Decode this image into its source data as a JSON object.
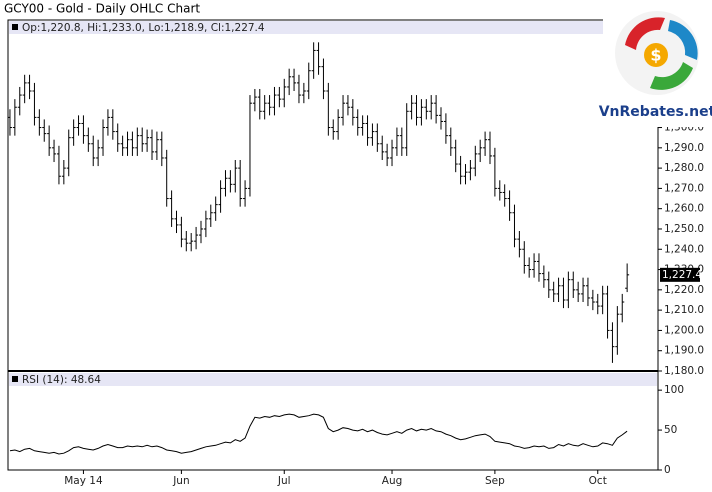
{
  "chart_data": [
    {
      "type": "ohlc",
      "title": "GCY00 - Gold - Daily OHLC Chart",
      "legend": "Op:1,220.8, Hi:1,233.0, Lo:1,218.9, Cl:1,227.4",
      "last_label": "1,227.4",
      "color": "#000000",
      "xlim": [
        -0.4,
        132.3
      ],
      "ylim": [
        1180,
        1353
      ],
      "yticks": [
        {
          "value": 1180,
          "label": "1,180.0"
        },
        {
          "value": 1190,
          "label": "1,190.0"
        },
        {
          "value": 1200,
          "label": "1,200.0"
        },
        {
          "value": 1210,
          "label": "1,210.0"
        },
        {
          "value": 1220,
          "label": "1,220.0"
        },
        {
          "value": 1230,
          "label": "1,230.0"
        },
        {
          "value": 1240,
          "label": "1,240.0"
        },
        {
          "value": 1250,
          "label": "1,250.0"
        },
        {
          "value": 1260,
          "label": "1,260.0"
        },
        {
          "value": 1270,
          "label": "1,270.0"
        },
        {
          "value": 1280,
          "label": "1,280.0"
        },
        {
          "value": 1290,
          "label": "1,290.0"
        },
        {
          "value": 1300,
          "label": "1,300.0"
        }
      ],
      "open": [
        1305,
        1300,
        1310,
        1316,
        1322,
        1318,
        1305,
        1300,
        1297,
        1290,
        1287,
        1276,
        1280,
        1295,
        1300,
        1302,
        1296,
        1292,
        1285,
        1290,
        1300,
        1305,
        1298,
        1292,
        1290,
        1294,
        1290,
        1296,
        1292,
        1295,
        1288,
        1294,
        1285,
        1265,
        1255,
        1252,
        1245,
        1243,
        1244,
        1247,
        1250,
        1255,
        1258,
        1262,
        1270,
        1275,
        1272,
        1280,
        1265,
        1270,
        1312,
        1315,
        1308,
        1312,
        1310,
        1316,
        1314,
        1320,
        1325,
        1322,
        1316,
        1318,
        1328,
        1338,
        1330,
        1318,
        1300,
        1298,
        1305,
        1312,
        1310,
        1305,
        1300,
        1302,
        1295,
        1298,
        1292,
        1288,
        1285,
        1290,
        1296,
        1290,
        1308,
        1312,
        1305,
        1310,
        1308,
        1312,
        1306,
        1303,
        1296,
        1290,
        1282,
        1276,
        1278,
        1280,
        1287,
        1290,
        1294,
        1286,
        1270,
        1268,
        1265,
        1258,
        1245,
        1240,
        1232,
        1230,
        1234,
        1228,
        1225,
        1220,
        1218,
        1222,
        1215,
        1225,
        1220,
        1218,
        1222,
        1216,
        1214,
        1212,
        1218,
        1200,
        1192,
        1208,
        1220.8
      ],
      "high": [
        1309,
        1314,
        1320,
        1326,
        1326,
        1322,
        1309,
        1304,
        1301,
        1294,
        1291,
        1284,
        1299,
        1304,
        1306,
        1306,
        1300,
        1296,
        1294,
        1304,
        1309,
        1309,
        1302,
        1296,
        1298,
        1298,
        1300,
        1300,
        1299,
        1299,
        1298,
        1298,
        1289,
        1269,
        1259,
        1256,
        1249,
        1248,
        1251,
        1254,
        1259,
        1262,
        1266,
        1274,
        1279,
        1279,
        1284,
        1284,
        1274,
        1316,
        1319,
        1319,
        1316,
        1316,
        1320,
        1320,
        1324,
        1329,
        1329,
        1326,
        1322,
        1332,
        1342,
        1342,
        1334,
        1322,
        1304,
        1309,
        1316,
        1316,
        1314,
        1309,
        1306,
        1306,
        1302,
        1302,
        1296,
        1292,
        1294,
        1300,
        1300,
        1312,
        1316,
        1316,
        1314,
        1314,
        1316,
        1316,
        1310,
        1307,
        1300,
        1294,
        1286,
        1282,
        1284,
        1291,
        1294,
        1298,
        1298,
        1290,
        1274,
        1272,
        1269,
        1262,
        1249,
        1244,
        1236,
        1238,
        1238,
        1232,
        1229,
        1224,
        1226,
        1226,
        1229,
        1229,
        1224,
        1226,
        1226,
        1220,
        1218,
        1222,
        1222,
        1204,
        1212,
        1218,
        1233
      ],
      "low": [
        1296,
        1296,
        1306,
        1312,
        1314,
        1301,
        1296,
        1293,
        1286,
        1283,
        1272,
        1272,
        1276,
        1291,
        1296,
        1292,
        1288,
        1281,
        1281,
        1286,
        1296,
        1294,
        1288,
        1286,
        1286,
        1286,
        1286,
        1288,
        1288,
        1284,
        1284,
        1281,
        1261,
        1251,
        1248,
        1241,
        1239,
        1239,
        1240,
        1243,
        1246,
        1251,
        1254,
        1258,
        1266,
        1268,
        1268,
        1261,
        1261,
        1266,
        1308,
        1304,
        1304,
        1306,
        1306,
        1310,
        1310,
        1316,
        1318,
        1312,
        1312,
        1314,
        1324,
        1326,
        1314,
        1296,
        1294,
        1294,
        1301,
        1306,
        1301,
        1296,
        1296,
        1291,
        1291,
        1288,
        1284,
        1281,
        1281,
        1286,
        1286,
        1286,
        1304,
        1301,
        1301,
        1304,
        1304,
        1302,
        1299,
        1292,
        1286,
        1278,
        1272,
        1272,
        1274,
        1276,
        1283,
        1286,
        1282,
        1266,
        1264,
        1261,
        1254,
        1241,
        1236,
        1228,
        1226,
        1226,
        1224,
        1221,
        1216,
        1214,
        1214,
        1211,
        1211,
        1216,
        1214,
        1214,
        1212,
        1210,
        1208,
        1208,
        1196,
        1184,
        1188,
        1204,
        1218.9
      ],
      "close": [
        1300,
        1310,
        1316,
        1322,
        1318,
        1305,
        1300,
        1297,
        1290,
        1287,
        1276,
        1280,
        1295,
        1300,
        1302,
        1296,
        1292,
        1285,
        1290,
        1300,
        1305,
        1298,
        1292,
        1290,
        1294,
        1290,
        1296,
        1292,
        1295,
        1288,
        1294,
        1285,
        1265,
        1255,
        1252,
        1245,
        1243,
        1244,
        1247,
        1250,
        1255,
        1258,
        1262,
        1270,
        1275,
        1272,
        1280,
        1265,
        1270,
        1312,
        1315,
        1308,
        1312,
        1310,
        1316,
        1314,
        1320,
        1325,
        1322,
        1316,
        1318,
        1328,
        1338,
        1330,
        1318,
        1300,
        1298,
        1305,
        1312,
        1310,
        1305,
        1300,
        1302,
        1295,
        1298,
        1292,
        1288,
        1285,
        1290,
        1296,
        1290,
        1308,
        1312,
        1305,
        1310,
        1308,
        1312,
        1306,
        1303,
        1296,
        1290,
        1282,
        1276,
        1278,
        1280,
        1287,
        1290,
        1294,
        1286,
        1270,
        1268,
        1265,
        1258,
        1245,
        1240,
        1232,
        1230,
        1234,
        1228,
        1225,
        1220,
        1218,
        1222,
        1215,
        1225,
        1220,
        1218,
        1222,
        1216,
        1214,
        1212,
        1218,
        1200,
        1192,
        1208,
        1214,
        1227.4
      ]
    },
    {
      "type": "line",
      "label": "RSI (14): 48.64",
      "color": "#000000",
      "xlim": [
        -0.4,
        132.3
      ],
      "ylim": [
        0,
        124
      ],
      "yticks": [
        0,
        50,
        100
      ],
      "xticks": [
        {
          "value": 15,
          "label": "May 14"
        },
        {
          "value": 35,
          "label": "Jun"
        },
        {
          "value": 56,
          "label": "Jul"
        },
        {
          "value": 78,
          "label": "Aug"
        },
        {
          "value": 99,
          "label": "Sep"
        },
        {
          "value": 120,
          "label": "Oct"
        }
      ],
      "values": [
        24,
        25,
        23,
        26,
        27,
        24,
        23,
        22,
        21,
        22,
        20,
        21,
        24,
        28,
        29,
        27,
        26,
        25,
        27,
        30,
        32,
        30,
        28,
        28,
        30,
        29,
        30,
        29,
        31,
        29,
        30,
        28,
        25,
        24,
        23,
        21,
        22,
        23,
        25,
        27,
        29,
        30,
        31,
        33,
        35,
        34,
        38,
        36,
        40,
        55,
        66,
        65,
        67,
        66,
        68,
        67,
        69,
        70,
        69,
        66,
        67,
        68,
        70,
        69,
        66,
        52,
        48,
        50,
        53,
        52,
        50,
        49,
        51,
        48,
        50,
        47,
        45,
        44,
        46,
        48,
        46,
        50,
        52,
        49,
        51,
        50,
        52,
        49,
        48,
        45,
        43,
        40,
        38,
        39,
        41,
        43,
        44,
        45,
        42,
        36,
        35,
        34,
        33,
        30,
        29,
        27,
        28,
        30,
        29,
        30,
        27,
        28,
        32,
        30,
        33,
        31,
        30,
        33,
        31,
        29,
        30,
        34,
        33,
        31,
        40,
        44,
        48.64
      ]
    }
  ],
  "logo": {
    "text": "VnRebates.net"
  }
}
